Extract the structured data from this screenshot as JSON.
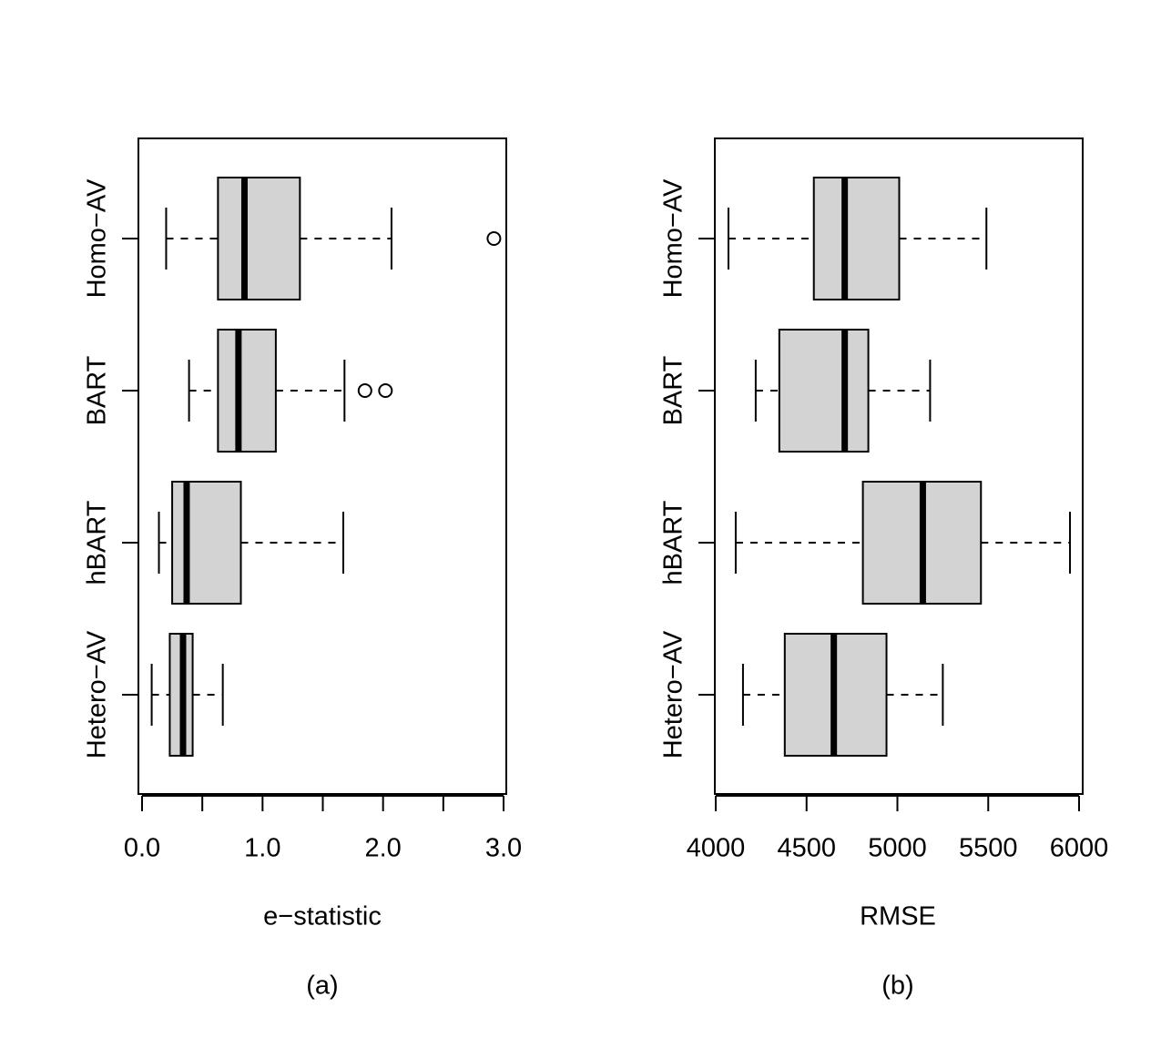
{
  "chart_data": [
    {
      "type": "boxplot",
      "orientation": "horizontal",
      "panel_label": "(a)",
      "xlabel": "e−statistic",
      "ylabel": "",
      "xlim": [
        0.0,
        3.0
      ],
      "x_ticks": [
        0.0,
        0.5,
        1.0,
        1.5,
        2.0,
        2.5,
        3.0
      ],
      "x_tick_labels": [
        "0.0",
        "",
        "1.0",
        "",
        "2.0",
        "",
        "3.0"
      ],
      "categories": [
        "Homo−AV",
        "BART",
        "hBART",
        "Hetero−AV"
      ],
      "fill_color": "#d3d3d3",
      "boxes": [
        {
          "name": "Homo−AV",
          "whisker_low": 0.2,
          "q1": 0.63,
          "median": 0.85,
          "q3": 1.31,
          "whisker_high": 2.07,
          "outliers": [
            2.92
          ]
        },
        {
          "name": "BART",
          "whisker_low": 0.39,
          "q1": 0.63,
          "median": 0.8,
          "q3": 1.11,
          "whisker_high": 1.68,
          "outliers": [
            1.85,
            2.02
          ]
        },
        {
          "name": "hBART",
          "whisker_low": 0.14,
          "q1": 0.25,
          "median": 0.37,
          "q3": 0.82,
          "whisker_high": 1.67,
          "outliers": []
        },
        {
          "name": "Hetero−AV",
          "whisker_low": 0.08,
          "q1": 0.23,
          "median": 0.34,
          "q3": 0.42,
          "whisker_high": 0.67,
          "outliers": []
        }
      ]
    },
    {
      "type": "boxplot",
      "orientation": "horizontal",
      "panel_label": "(b)",
      "xlabel": "RMSE",
      "ylabel": "",
      "xlim": [
        4000,
        6000
      ],
      "x_ticks": [
        4000,
        4500,
        5000,
        5500,
        6000
      ],
      "x_tick_labels": [
        "4000",
        "4500",
        "5000",
        "5500",
        "6000"
      ],
      "categories": [
        "Homo−AV",
        "BART",
        "hBART",
        "Hetero−AV"
      ],
      "fill_color": "#d3d3d3",
      "boxes": [
        {
          "name": "Homo−AV",
          "whisker_low": 4070,
          "q1": 4540,
          "median": 4710,
          "q3": 5010,
          "whisker_high": 5490,
          "outliers": []
        },
        {
          "name": "BART",
          "whisker_low": 4220,
          "q1": 4350,
          "median": 4710,
          "q3": 4840,
          "whisker_high": 5180,
          "outliers": []
        },
        {
          "name": "hBART",
          "whisker_low": 4110,
          "q1": 4810,
          "median": 5140,
          "q3": 5460,
          "whisker_high": 5950,
          "outliers": []
        },
        {
          "name": "Hetero−AV",
          "whisker_low": 4150,
          "q1": 4380,
          "median": 4650,
          "q3": 4940,
          "whisker_high": 5250,
          "outliers": []
        }
      ]
    }
  ]
}
